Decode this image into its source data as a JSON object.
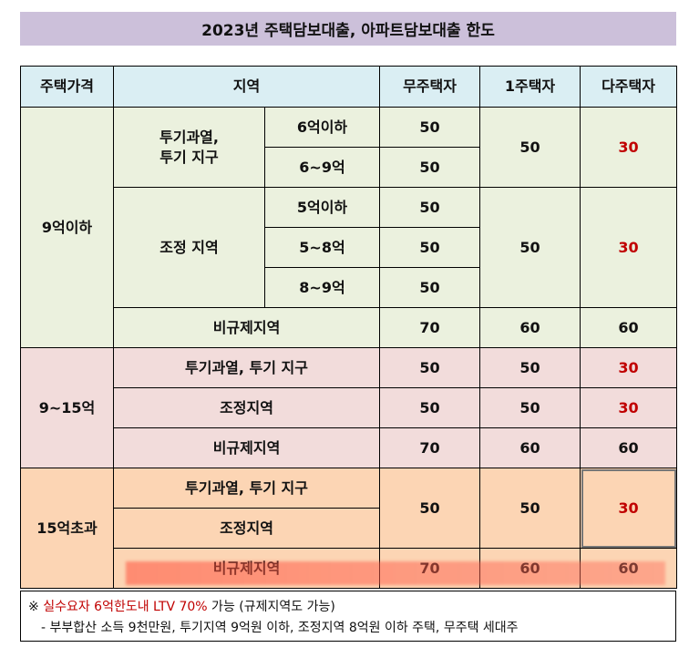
{
  "title": "2023년 주택담보대출, 아파트담보대출 한도",
  "headers": {
    "price": "주택가격",
    "region": "지역",
    "none": "무주택자",
    "one": "1주택자",
    "multi": "다주택자"
  },
  "g1": {
    "label": "9억이하",
    "spec": "투기과열,\n투기 지구",
    "spec_r1": "6억이하",
    "spec_r2": "6~9억",
    "spec_v1": "50",
    "spec_v2": "50",
    "spec_one": "50",
    "spec_multi": "30",
    "adj": "조정 지역",
    "adj_r1": "5억이하",
    "adj_r2": "5~8억",
    "adj_r3": "8~9억",
    "adj_v1": "50",
    "adj_v2": "50",
    "adj_v3": "50",
    "adj_one": "50",
    "adj_multi": "30",
    "non": "비규제지역",
    "non_v": "70",
    "non_one": "60",
    "non_multi": "60"
  },
  "g2": {
    "label": "9~15억",
    "rows": [
      {
        "region": "투기과열, 투기 지구",
        "none": "50",
        "one": "50",
        "multi": "30"
      },
      {
        "region": "조정지역",
        "none": "50",
        "one": "50",
        "multi": "30"
      },
      {
        "region": "비규제지역",
        "none": "70",
        "one": "60",
        "multi": "60"
      }
    ]
  },
  "g3": {
    "label": "15억초과",
    "spec": "투기과열, 투기 지구",
    "adj": "조정지역",
    "merged_none": "50",
    "merged_one": "50",
    "merged_multi": "30",
    "non": "비규제지역",
    "non_v": "70",
    "non_one": "60",
    "non_multi": "60"
  },
  "note": {
    "prefix": "※ ",
    "highlight": "실수요자 6억한도내 LTV 70%",
    "suffix": " 가능 (규제지역도 가능)",
    "line2": "- 부부합산 소득 9천만원, 투기지역 9억원 이하, 조정지역 8억원 이하 주택, 무주택 세대주"
  },
  "colors": {
    "title_bg": "#ccc0da",
    "header_bg": "#daeef3",
    "group1_bg": "#ebf1de",
    "group2_bg": "#f2dcdb",
    "group3_bg": "#fcd5b4",
    "multi_red": "#c00000"
  }
}
